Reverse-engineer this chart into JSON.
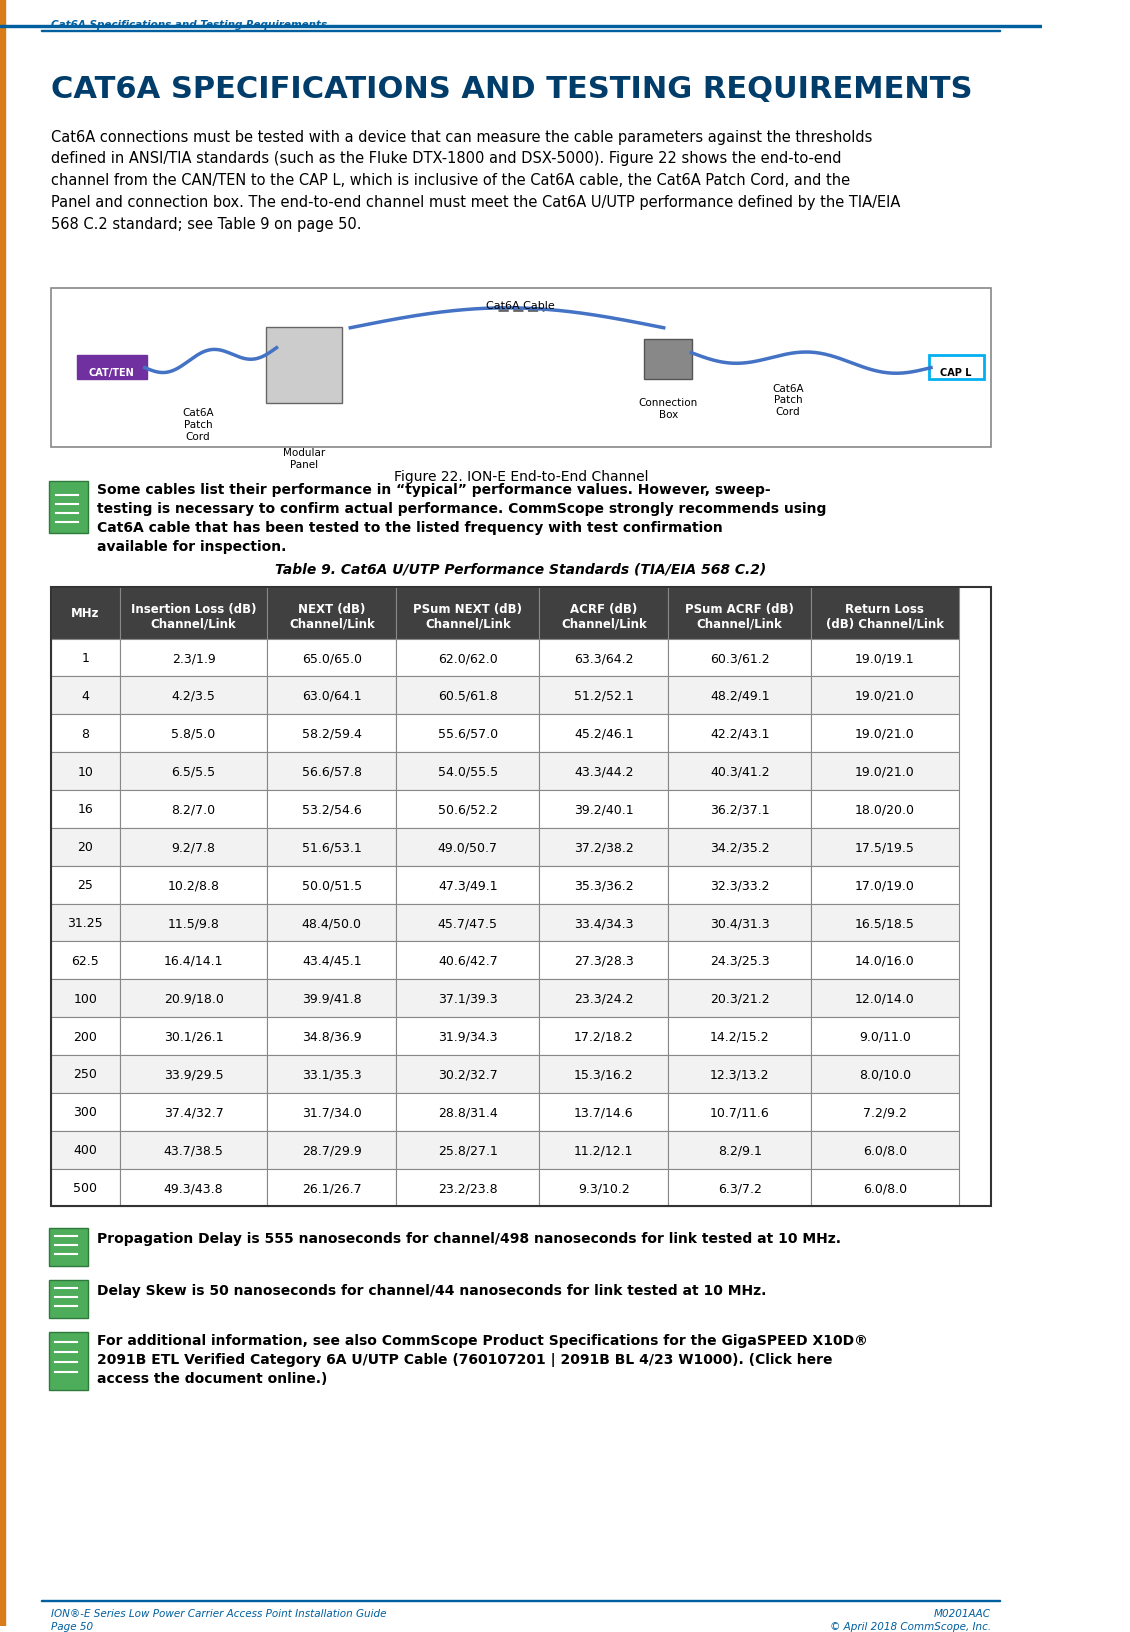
{
  "header_text": "Cat6A Specifications and Testing Requirements",
  "title_text": "CAT6A SPECIFICATIONS AND TESTING REQUIREMENTS",
  "body_text": "Cat6A connections must be tested with a device that can measure the cable parameters against the thresholds defined in ANSI/TIA standards (such as the Fluke DTX-1800 and DSX-5000). Figure 22 shows the end-to-end channel from the CAN/TEN to the CAP L, which is inclusive of the Cat6A cable, the Cat6A Patch Cord, and the Panel and connection box. The end-to-end channel must meet the Cat6A U/UTP performance defined by the TIA/EIA 568 C.2 standard; see Table 9 on page 50.",
  "figure_caption": "Figure 22. ION-E End-to-End Channel",
  "note1_text": "Some cables list their performance in “typical” performance values. However, sweep-testing is necessary to confirm actual performance. CommScope strongly recommends using Cat6A cable that has been tested to the listed frequency with test confirmation available for inspection.",
  "table_title": "Table 9. Cat6A U/UTP Performance Standards (TIA/EIA 568 C.2)",
  "col_headers": [
    "MHz",
    "Insertion Loss (dB)\nChannel/Link",
    "NEXT (dB)\nChannel/Link",
    "PSum NEXT (dB)\nChannel/Link",
    "ACRF (dB)\nChannel/Link",
    "PSum ACRF (dB)\nChannel/Link",
    "Return Loss\n(dB) Channel/Link"
  ],
  "table_data": [
    [
      "1",
      "2.3/1.9",
      "65.0/65.0",
      "62.0/62.0",
      "63.3/64.2",
      "60.3/61.2",
      "19.0/19.1"
    ],
    [
      "4",
      "4.2/3.5",
      "63.0/64.1",
      "60.5/61.8",
      "51.2/52.1",
      "48.2/49.1",
      "19.0/21.0"
    ],
    [
      "8",
      "5.8/5.0",
      "58.2/59.4",
      "55.6/57.0",
      "45.2/46.1",
      "42.2/43.1",
      "19.0/21.0"
    ],
    [
      "10",
      "6.5/5.5",
      "56.6/57.8",
      "54.0/55.5",
      "43.3/44.2",
      "40.3/41.2",
      "19.0/21.0"
    ],
    [
      "16",
      "8.2/7.0",
      "53.2/54.6",
      "50.6/52.2",
      "39.2/40.1",
      "36.2/37.1",
      "18.0/20.0"
    ],
    [
      "20",
      "9.2/7.8",
      "51.6/53.1",
      "49.0/50.7",
      "37.2/38.2",
      "34.2/35.2",
      "17.5/19.5"
    ],
    [
      "25",
      "10.2/8.8",
      "50.0/51.5",
      "47.3/49.1",
      "35.3/36.2",
      "32.3/33.2",
      "17.0/19.0"
    ],
    [
      "31.25",
      "11.5/9.8",
      "48.4/50.0",
      "45.7/47.5",
      "33.4/34.3",
      "30.4/31.3",
      "16.5/18.5"
    ],
    [
      "62.5",
      "16.4/14.1",
      "43.4/45.1",
      "40.6/42.7",
      "27.3/28.3",
      "24.3/25.3",
      "14.0/16.0"
    ],
    [
      "100",
      "20.9/18.0",
      "39.9/41.8",
      "37.1/39.3",
      "23.3/24.2",
      "20.3/21.2",
      "12.0/14.0"
    ],
    [
      "200",
      "30.1/26.1",
      "34.8/36.9",
      "31.9/34.3",
      "17.2/18.2",
      "14.2/15.2",
      "9.0/11.0"
    ],
    [
      "250",
      "33.9/29.5",
      "33.1/35.3",
      "30.2/32.7",
      "15.3/16.2",
      "12.3/13.2",
      "8.0/10.0"
    ],
    [
      "300",
      "37.4/32.7",
      "31.7/34.0",
      "28.8/31.4",
      "13.7/14.6",
      "10.7/11.6",
      "7.2/9.2"
    ],
    [
      "400",
      "43.7/38.5",
      "28.7/29.9",
      "25.8/27.1",
      "11.2/12.1",
      "8.2/9.1",
      "6.0/8.0"
    ],
    [
      "500",
      "49.3/43.8",
      "26.1/26.7",
      "23.2/23.8",
      "9.3/10.2",
      "6.3/7.2",
      "6.0/8.0"
    ]
  ],
  "note2_text": "Propagation Delay is 555 nanoseconds for channel/498 nanoseconds for link tested at 10 MHz.",
  "note3_text": "Delay Skew is 50 nanoseconds for channel/44 nanoseconds for link tested at 10 MHz.",
  "note4_text": "For additional information, see also CommScope Product Specifications for the GigaSPEED X10D® 2091B ETL Verified Category 6A U/UTP Cable (760107201 | 2091B BL 4/23 W1000). (Click here access the document online.)",
  "footer_left": "ION®-E Series Low Power Carrier Access Point Installation Guide\nPage 50",
  "footer_right": "M0201AAC\n© April 2018 CommScope, Inc.",
  "blue_color": "#005f9e",
  "dark_blue": "#003d6b",
  "link_color": "#2e75b6",
  "table_header_bg": "#404040",
  "table_header_fg": "#ffffff",
  "table_row_bg1": "#ffffff",
  "table_row_bg2": "#f2f2f2",
  "header_bar_color": "#005f9e",
  "purple_color": "#7030a0",
  "cyan_color": "#00b0f0"
}
